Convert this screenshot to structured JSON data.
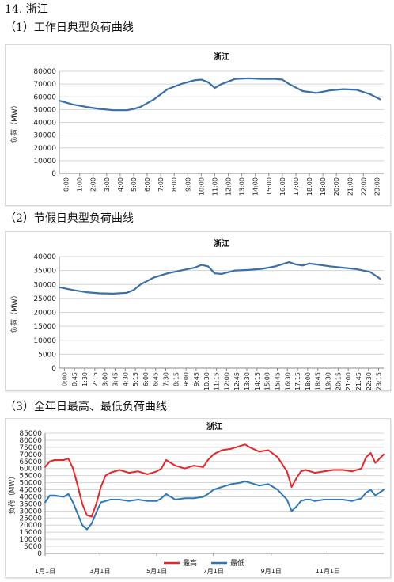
{
  "page": {
    "section_title": "14. 浙江",
    "heading_1": "（1）工作日典型负荷曲线",
    "heading_2": "（2）节假日典型负荷曲线",
    "heading_3": "（3）全年日最高、最低负荷曲线"
  },
  "chart_data": [
    {
      "type": "line",
      "title": "浙江",
      "ylabel": "负荷（MW）",
      "xlabel": "",
      "ylim": [
        0,
        80000
      ],
      "yticks": [
        0,
        10000,
        20000,
        30000,
        40000,
        50000,
        60000,
        70000,
        80000
      ],
      "grid": "horizontal",
      "x_tick_labels": [
        "0:00",
        "1:00",
        "2:00",
        "3:00",
        "4:00",
        "5:00",
        "6:00",
        "7:00",
        "8:00",
        "9:00",
        "10:00",
        "11:00",
        "12:00",
        "13:00",
        "14:00",
        "15:00",
        "16:00",
        "17:00",
        "18:00",
        "19:00",
        "20:00",
        "21:00",
        "22:00",
        "23:00"
      ],
      "x": [
        0,
        1,
        2,
        3,
        4,
        5,
        5.5,
        6,
        7,
        8,
        9,
        10,
        10.5,
        11,
        11.5,
        12,
        13,
        14,
        15,
        16,
        16.5,
        17,
        18,
        19,
        20,
        21,
        22,
        23,
        23.75
      ],
      "series": [
        {
          "color": "#3a70a8",
          "values": [
            57000,
            54000,
            52000,
            50500,
            49500,
            49500,
            50500,
            52000,
            58000,
            66000,
            70000,
            73000,
            73500,
            71500,
            67000,
            70000,
            74000,
            74500,
            74000,
            74000,
            73500,
            70000,
            64500,
            63000,
            65000,
            66000,
            65500,
            62000,
            58000
          ]
        }
      ]
    },
    {
      "type": "line",
      "title": "浙江",
      "ylabel": "负荷（MW）",
      "xlabel": "",
      "ylim": [
        0,
        40000
      ],
      "yticks": [
        0,
        5000,
        10000,
        15000,
        20000,
        25000,
        30000,
        35000,
        40000
      ],
      "grid": "horizontal",
      "x_tick_labels": [
        "0:00",
        "0:45",
        "1:30",
        "2:15",
        "3:00",
        "3:45",
        "4:30",
        "5:15",
        "6:00",
        "6:45",
        "7:30",
        "8:15",
        "9:00",
        "9:45",
        "10:30",
        "11:15",
        "12:00",
        "12:45",
        "13:30",
        "14:15",
        "15:00",
        "15:45",
        "16:30",
        "17:15",
        "18:00",
        "18:45",
        "19:30",
        "20:15",
        "21:00",
        "21:45",
        "22:30",
        "23:15"
      ],
      "x": [
        0,
        1,
        2,
        3,
        4,
        5,
        5.5,
        6,
        7,
        8,
        9,
        10,
        10.5,
        11,
        11.5,
        12,
        13,
        14,
        15,
        16,
        17,
        17.5,
        18,
        18.5,
        19,
        20,
        21,
        22,
        23,
        23.75
      ],
      "series": [
        {
          "color": "#3a70a8",
          "values": [
            29000,
            28000,
            27200,
            26800,
            26700,
            27000,
            28000,
            30000,
            32500,
            34000,
            35000,
            36000,
            37000,
            36500,
            34000,
            33800,
            35000,
            35200,
            35600,
            36500,
            38000,
            37200,
            36800,
            37500,
            37200,
            36500,
            36000,
            35500,
            34500,
            32000
          ]
        }
      ]
    },
    {
      "type": "line",
      "title": "浙江",
      "ylabel": "负荷（MW）",
      "xlabel": "",
      "ylim": [
        0,
        85000
      ],
      "yticks": [
        0,
        5000,
        10000,
        15000,
        20000,
        25000,
        30000,
        35000,
        40000,
        45000,
        50000,
        55000,
        60000,
        65000,
        70000,
        75000,
        80000,
        85000
      ],
      "grid": "horizontal",
      "legend": "bottom-center",
      "x_tick_labels": [
        "1月1日",
        "3月1日",
        "5月1日",
        "7月1日",
        "9月1日",
        "11月1日"
      ],
      "x_tick_days": [
        0,
        59,
        120,
        181,
        243,
        304
      ],
      "x_max_day": 364,
      "x": [
        0,
        5,
        10,
        20,
        25,
        30,
        35,
        40,
        45,
        50,
        55,
        60,
        65,
        70,
        80,
        90,
        100,
        110,
        120,
        125,
        130,
        140,
        150,
        160,
        170,
        175,
        181,
        190,
        200,
        210,
        215,
        220,
        230,
        240,
        250,
        260,
        265,
        270,
        275,
        280,
        285,
        290,
        300,
        310,
        320,
        330,
        340,
        345,
        350,
        355,
        364
      ],
      "series": [
        {
          "name": "最高",
          "color": "#e8262a",
          "values": [
            61000,
            65000,
            66000,
            66000,
            67000,
            60000,
            48000,
            35000,
            27000,
            26000,
            35000,
            47000,
            55000,
            57000,
            59000,
            57000,
            58000,
            56000,
            58000,
            60000,
            66000,
            62000,
            60000,
            62000,
            61000,
            66000,
            70000,
            73000,
            74000,
            76000,
            77000,
            75000,
            72000,
            73000,
            68000,
            58000,
            47000,
            53000,
            58000,
            59000,
            58000,
            57000,
            58000,
            59000,
            59000,
            58000,
            60000,
            68000,
            71000,
            64000,
            70000
          ]
        },
        {
          "name": "最低",
          "color": "#2e78b7",
          "values": [
            36000,
            41000,
            41000,
            40000,
            42000,
            36000,
            28000,
            20000,
            17000,
            21000,
            29000,
            36000,
            37000,
            38000,
            38000,
            37000,
            38000,
            37000,
            37000,
            39000,
            42000,
            38000,
            39000,
            39000,
            40000,
            42000,
            45000,
            47000,
            49000,
            50000,
            51000,
            50000,
            48000,
            49000,
            45000,
            38000,
            30000,
            33000,
            37000,
            38000,
            38000,
            37000,
            38000,
            38000,
            38000,
            37000,
            39000,
            43000,
            45000,
            41000,
            45000
          ]
        }
      ]
    }
  ]
}
